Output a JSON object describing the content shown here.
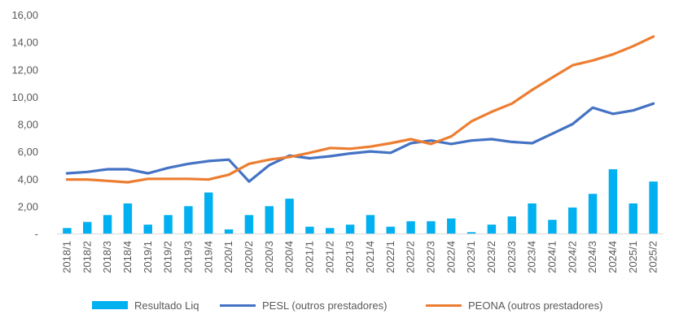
{
  "chart_data": {
    "type": "bar+line",
    "categories": [
      "2018/1",
      "2018/2",
      "2018/3",
      "2018/4",
      "2019/1",
      "2019/2",
      "2019/3",
      "2019/4",
      "2020/1",
      "2020/2",
      "2020/3",
      "2020/4",
      "2021/1",
      "2021/2",
      "2021/3",
      "2021/4",
      "2022/1",
      "2022/2",
      "2022/3",
      "2022/4",
      "2023/1",
      "2023/2",
      "2023/3",
      "2023/4",
      "2024/1",
      "2024/2",
      "2024/3",
      "2024/4",
      "2025/1",
      "2025/2"
    ],
    "y_ticks": [
      "-",
      "2,00",
      "4,00",
      "6,00",
      "8,00",
      "10,00",
      "12,00",
      "14,00",
      "16,00"
    ],
    "ylim": [
      0,
      16
    ],
    "grid": false,
    "legend_position": "bottom",
    "series": [
      {
        "name": "Resultado Liq",
        "type": "bar",
        "color": "#00B0F0",
        "values": [
          0.4,
          0.85,
          1.35,
          2.2,
          0.65,
          1.35,
          2.0,
          3.0,
          0.3,
          1.35,
          2.0,
          2.55,
          0.5,
          0.4,
          0.65,
          1.35,
          0.5,
          0.9,
          0.9,
          1.1,
          0.1,
          0.65,
          1.25,
          2.2,
          1.0,
          1.9,
          2.9,
          4.7,
          2.2,
          3.8
        ]
      },
      {
        "name": "PESL (outros prestadores)",
        "type": "line",
        "color": "#4472C4",
        "values": [
          4.4,
          4.5,
          4.7,
          4.7,
          4.4,
          4.8,
          5.1,
          5.3,
          5.4,
          3.8,
          5.0,
          5.7,
          5.5,
          5.65,
          5.85,
          6.0,
          5.9,
          6.6,
          6.8,
          6.55,
          6.8,
          6.9,
          6.7,
          6.6,
          7.3,
          8.0,
          9.2,
          8.75,
          9.0,
          9.5
        ]
      },
      {
        "name": "PEONA (outros prestadores)",
        "type": "line",
        "color": "#ED7D31",
        "values": [
          3.95,
          3.95,
          3.85,
          3.75,
          4.0,
          4.0,
          4.0,
          3.95,
          4.3,
          5.1,
          5.4,
          5.6,
          5.9,
          6.25,
          6.2,
          6.35,
          6.6,
          6.9,
          6.55,
          7.1,
          8.2,
          8.9,
          9.5,
          10.5,
          11.4,
          12.3,
          12.65,
          13.1,
          13.7,
          14.4
        ]
      }
    ]
  }
}
